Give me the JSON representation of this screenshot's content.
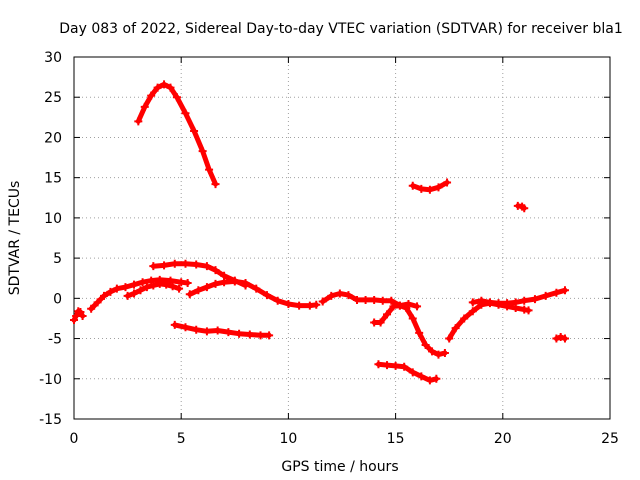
{
  "chart_data": {
    "type": "scatter",
    "title": "Day 083 of 2022, Sidereal Day-to-day VTEC variation (SDTVAR) for receiver bla1",
    "xlabel": "GPS time / hours",
    "ylabel": "SDTVAR / TECUs",
    "xlim": [
      0,
      25
    ],
    "ylim": [
      -15,
      30
    ],
    "xticks": [
      0,
      5,
      10,
      15,
      20,
      25
    ],
    "yticks": [
      -15,
      -10,
      -5,
      0,
      5,
      10,
      15,
      20,
      25,
      30
    ],
    "grid": true,
    "marker": "plus",
    "series": [
      {
        "name": "arc-1",
        "color": "#ff0000",
        "x": [
          0.0,
          0.1,
          0.2,
          0.3,
          0.4
        ],
        "y": [
          -2.7,
          -2.2,
          -1.6,
          -1.7,
          -2.2
        ]
      },
      {
        "name": "arc-2",
        "color": "#ff0000",
        "x": [
          0.8,
          1.1,
          1.4,
          1.7,
          2.0,
          2.4,
          2.8,
          3.2,
          3.6,
          4.0,
          4.5,
          5.0,
          5.3
        ],
        "y": [
          -1.3,
          -0.5,
          0.3,
          0.8,
          1.2,
          1.4,
          1.7,
          2.0,
          2.2,
          2.3,
          2.2,
          2.0,
          1.9
        ]
      },
      {
        "name": "arc-3",
        "color": "#ff0000",
        "x": [
          2.5,
          2.8,
          3.1,
          3.4,
          3.7,
          4.0,
          4.3,
          4.6,
          4.9
        ],
        "y": [
          0.3,
          0.6,
          1.0,
          1.4,
          1.6,
          1.8,
          1.7,
          1.5,
          1.2
        ]
      },
      {
        "name": "arc-4",
        "color": "#ff0000",
        "x": [
          3.0,
          3.3,
          3.6,
          3.9,
          4.2,
          4.5,
          4.8,
          5.2,
          5.6,
          6.0,
          6.3,
          6.6
        ],
        "y": [
          22.0,
          23.8,
          25.2,
          26.2,
          26.6,
          26.2,
          25.0,
          23.0,
          20.8,
          18.3,
          16.0,
          14.2
        ]
      },
      {
        "name": "arc-5",
        "color": "#ff0000",
        "x": [
          3.7,
          4.2,
          4.7,
          5.2,
          5.7,
          6.2,
          6.6,
          7.0,
          7.5,
          8.0
        ],
        "y": [
          4.0,
          4.1,
          4.3,
          4.3,
          4.2,
          4.0,
          3.5,
          2.8,
          2.2,
          1.6
        ]
      },
      {
        "name": "arc-6",
        "color": "#ff0000",
        "x": [
          5.4,
          5.8,
          6.2,
          6.6,
          7.0,
          7.5,
          8.0,
          8.5,
          9.0,
          9.5,
          10.0,
          10.5,
          11.0,
          11.3
        ],
        "y": [
          0.5,
          1.0,
          1.4,
          1.8,
          2.0,
          2.1,
          1.9,
          1.2,
          0.4,
          -0.3,
          -0.7,
          -0.9,
          -0.9,
          -0.8
        ]
      },
      {
        "name": "arc-7",
        "color": "#ff0000",
        "x": [
          4.7,
          5.2,
          5.7,
          6.2,
          6.7,
          7.2,
          7.7,
          8.2,
          8.7,
          9.1
        ],
        "y": [
          -3.3,
          -3.6,
          -3.9,
          -4.1,
          -4.0,
          -4.2,
          -4.4,
          -4.5,
          -4.6,
          -4.6
        ]
      },
      {
        "name": "arc-8",
        "color": "#ff0000",
        "x": [
          11.6,
          12.0,
          12.4,
          12.8,
          13.2,
          13.6,
          14.0,
          14.4,
          14.8,
          15.2,
          15.6,
          16.0
        ],
        "y": [
          -0.4,
          0.3,
          0.6,
          0.4,
          -0.2,
          -0.2,
          -0.2,
          -0.3,
          -0.3,
          -0.9,
          -0.7,
          -1.0
        ]
      },
      {
        "name": "arc-9",
        "color": "#ff0000",
        "x": [
          14.0,
          14.3,
          14.6,
          14.9,
          15.2,
          15.5,
          15.8,
          16.1,
          16.4,
          16.7,
          17.0,
          17.3
        ],
        "y": [
          -3.0,
          -3.0,
          -2.0,
          -1.0,
          -0.9,
          -1.2,
          -2.5,
          -4.3,
          -5.8,
          -6.6,
          -7.0,
          -6.8
        ]
      },
      {
        "name": "arc-10",
        "color": "#ff0000",
        "x": [
          14.2,
          14.6,
          15.0,
          15.4,
          15.8,
          16.2,
          16.6,
          16.9
        ],
        "y": [
          -8.2,
          -8.3,
          -8.4,
          -8.5,
          -9.2,
          -9.7,
          -10.2,
          -10.0
        ]
      },
      {
        "name": "arc-11",
        "color": "#ff0000",
        "x": [
          15.8,
          16.2,
          16.6,
          17.0,
          17.4
        ],
        "y": [
          14.0,
          13.6,
          13.5,
          13.8,
          14.4
        ]
      },
      {
        "name": "arc-12",
        "color": "#ff0000",
        "x": [
          17.5,
          17.8,
          18.2,
          18.6,
          19.0,
          19.4,
          19.8,
          20.2,
          20.6,
          21.0,
          21.2
        ],
        "y": [
          -5.0,
          -3.7,
          -2.5,
          -1.6,
          -0.8,
          -0.6,
          -0.8,
          -1.0,
          -1.2,
          -1.4,
          -1.5
        ]
      },
      {
        "name": "arc-13",
        "color": "#ff0000",
        "x": [
          18.6,
          19.0,
          19.4,
          19.8,
          20.2,
          20.6,
          21.0,
          21.5,
          22.0,
          22.5,
          22.9
        ],
        "y": [
          -0.5,
          -0.3,
          -0.5,
          -0.6,
          -0.6,
          -0.5,
          -0.3,
          -0.1,
          0.3,
          0.7,
          1.0
        ]
      },
      {
        "name": "arc-14",
        "color": "#ff0000",
        "x": [
          20.7,
          20.9,
          21.0
        ],
        "y": [
          11.5,
          11.4,
          11.2
        ]
      },
      {
        "name": "arc-15",
        "color": "#ff0000",
        "x": [
          22.5,
          22.7,
          22.9
        ],
        "y": [
          -5.0,
          -4.8,
          -5.0
        ]
      }
    ]
  }
}
